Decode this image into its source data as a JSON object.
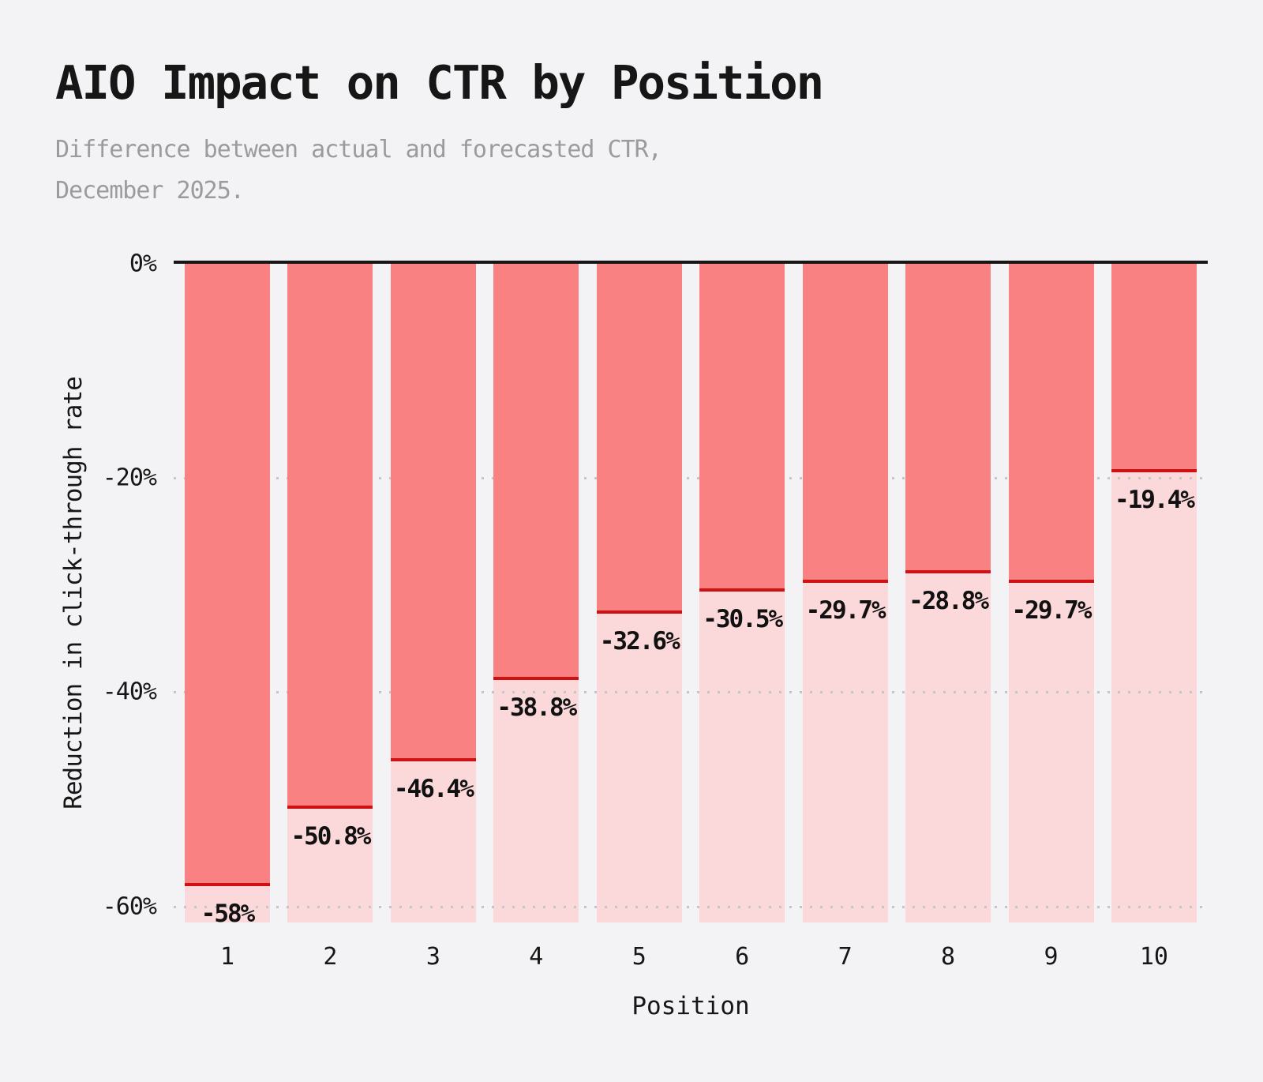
{
  "title": "AIO Impact on CTR by Position",
  "subtitle_line1": "Difference between actual and forecasted CTR,",
  "subtitle_line2": "December 2025.",
  "colors": {
    "background": "#f3f2f4",
    "bar_fill": "#fa8181",
    "bar_background": "#fbd9da",
    "value_line": "#d01114",
    "zero_line": "#161616",
    "gridline": "#c5c4c6",
    "title_text": "#161616",
    "subtitle_text": "#9b9b9b",
    "value_label_text": "#111111"
  },
  "chart_data": {
    "type": "bar",
    "title": "AIO Impact on CTR by Position",
    "subtitle": "Difference between actual and forecasted CTR, December 2025.",
    "categories": [
      "1",
      "2",
      "3",
      "4",
      "5",
      "6",
      "7",
      "8",
      "9",
      "10"
    ],
    "values": [
      -58,
      -50.8,
      -46.4,
      -38.8,
      -32.6,
      -30.5,
      -29.7,
      -28.8,
      -29.7,
      -19.4
    ],
    "value_labels": [
      "-58%",
      "-50.8%",
      "-46.4%",
      "-38.8%",
      "-32.6%",
      "-30.5%",
      "-29.7%",
      "-28.8%",
      "-29.7%",
      "-19.4%"
    ],
    "xlabel": "Position",
    "ylabel": "Reduction in click-through rate",
    "ylim": [
      -61.5,
      0
    ],
    "yticks": [
      {
        "value": 0,
        "label": "0%"
      },
      {
        "value": -20,
        "label": "-20%"
      },
      {
        "value": -40,
        "label": "-40%"
      },
      {
        "value": -60,
        "label": "-60%"
      }
    ],
    "grid": "horizontal-dotted",
    "legend": "none"
  }
}
